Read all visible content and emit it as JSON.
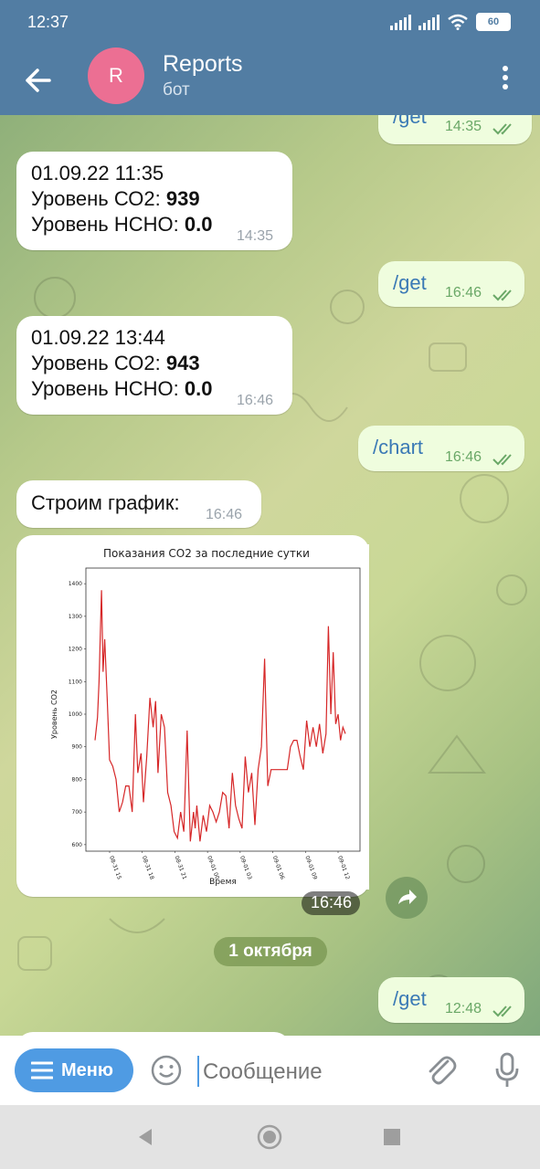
{
  "status_bar": {
    "time": "12:37",
    "battery": "60"
  },
  "header": {
    "avatar_letter": "R",
    "title": "Reports",
    "subtitle": "бот"
  },
  "messages": {
    "m0": {
      "text": "/get",
      "time": "14:35"
    },
    "m1": {
      "line1": "01.09.22 11:35",
      "line2_label": "Уровень СО2: ",
      "line2_value": "939",
      "line3_label": "Уровень НСНО: ",
      "line3_value": "0.0",
      "time": "14:35"
    },
    "m2": {
      "text": "/get",
      "time": "16:46"
    },
    "m3": {
      "line1": "01.09.22 13:44",
      "line2_label": "Уровень СО2: ",
      "line2_value": "943",
      "line3_label": "Уровень НСНО: ",
      "line3_value": "0.0",
      "time": "16:46"
    },
    "m4": {
      "text": "/chart",
      "time": "16:46"
    },
    "m5": {
      "text": "Строим график:",
      "time": "16:46"
    },
    "m6": {
      "time": "16:46"
    },
    "date_separator": "1 октября",
    "m7": {
      "text": "/get",
      "time": "12:48"
    }
  },
  "chart_data": {
    "type": "line",
    "title": "Показания CO2 за последние сутки",
    "xlabel": "Время",
    "ylabel": "Уровень CO2",
    "ylim": [
      580,
      1420
    ],
    "yticks": [
      600,
      700,
      800,
      900,
      1000,
      1100,
      1200,
      1300,
      1400
    ],
    "xticks": [
      "08-31 15",
      "08-31 18",
      "08-31 21",
      "09-01 00",
      "09-01 03",
      "09-01 06",
      "09-01 09",
      "09-01 12"
    ],
    "series": [
      {
        "color": "#d62728",
        "x": [
          0.0,
          0.3,
          0.5,
          0.8,
          1.0,
          1.2,
          1.5,
          1.8,
          2.2,
          2.6,
          3.0,
          3.4,
          3.8,
          4.2,
          4.6,
          5.0,
          5.3,
          5.7,
          6.0,
          6.4,
          6.8,
          7.2,
          7.5,
          7.8,
          8.2,
          8.6,
          9.0,
          9.4,
          9.8,
          10.2,
          10.6,
          11.0,
          11.4,
          11.8,
          12.2,
          12.4,
          12.6,
          13.0,
          13.4,
          13.8,
          14.2,
          14.6,
          15.0,
          15.4,
          15.8,
          16.2,
          16.6,
          17.0,
          17.4,
          17.8,
          18.2,
          18.6,
          19.0,
          19.4,
          19.8,
          20.2,
          20.6,
          21.0,
          21.4,
          21.8,
          22.2,
          22.6,
          23.0,
          23.4,
          23.8,
          24.2,
          24.6,
          25.0,
          25.4,
          25.8,
          26.2,
          26.6,
          27.0,
          27.4,
          27.8,
          28.2,
          28.6,
          28.9,
          29.2,
          29.5,
          29.8,
          30.1,
          30.4,
          30.7,
          31.0
        ],
        "values": [
          920,
          990,
          1100,
          1380,
          1130,
          1230,
          1050,
          860,
          840,
          800,
          700,
          730,
          780,
          780,
          700,
          1000,
          820,
          880,
          730,
          870,
          1050,
          960,
          1040,
          820,
          1000,
          960,
          760,
          720,
          640,
          620,
          700,
          640,
          950,
          610,
          700,
          650,
          720,
          610,
          690,
          640,
          720,
          700,
          670,
          700,
          760,
          750,
          650,
          820,
          720,
          680,
          650,
          870,
          760,
          820,
          660,
          830,
          900,
          1170,
          780,
          830,
          830,
          830,
          830,
          830,
          830,
          900,
          920,
          920,
          870,
          830,
          980,
          900,
          960,
          900,
          970,
          880,
          940,
          1270,
          1000,
          1190,
          970,
          1000,
          920,
          960,
          940
        ]
      }
    ]
  },
  "input_bar": {
    "menu_label": "Меню",
    "placeholder": "Сообщение"
  }
}
